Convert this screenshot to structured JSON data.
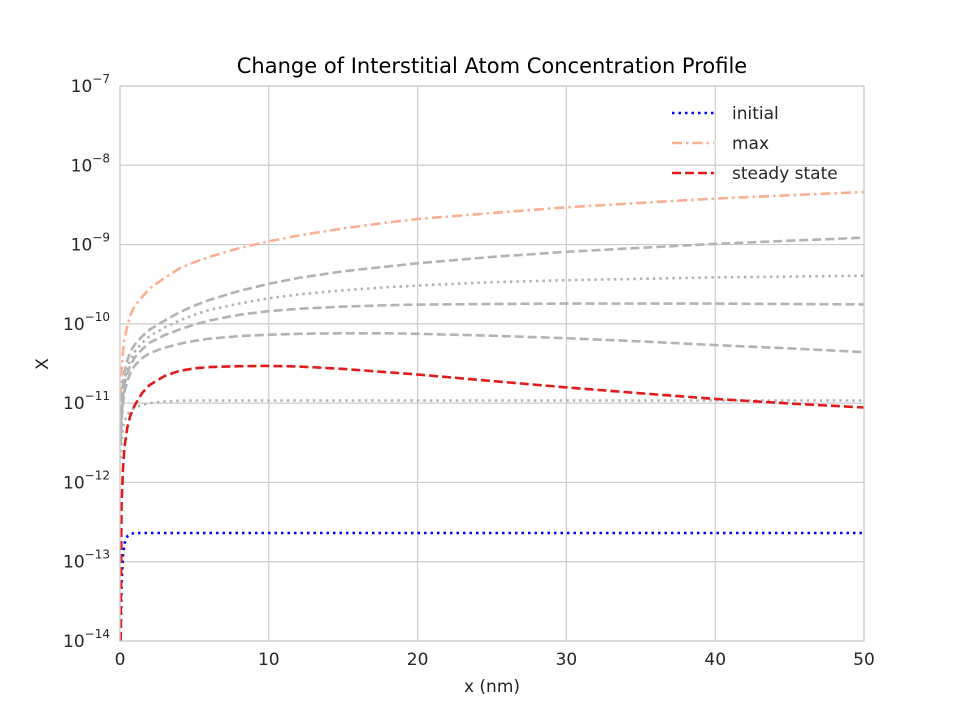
{
  "chart_data": {
    "type": "line",
    "title": "Change of Interstitial Atom Concentration Profile",
    "xlabel": "x (nm)",
    "ylabel": "X",
    "xlim": [
      0,
      50
    ],
    "ylim": [
      1e-14,
      1e-07
    ],
    "yscale": "log",
    "grid": true,
    "legend_position": "top-right",
    "x_ticks": [
      0,
      10,
      20,
      30,
      40,
      50
    ],
    "y_tick_base": "10",
    "y_tick_exponents": [
      "−14",
      "−13",
      "−12",
      "−11",
      "−10",
      "−9",
      "−8",
      "−7"
    ],
    "x": [
      0.05,
      0.1,
      0.2,
      0.3,
      0.5,
      0.7,
      1,
      1.5,
      2,
      3,
      4,
      5,
      6,
      8,
      10,
      12,
      15,
      18,
      20,
      25,
      30,
      35,
      40,
      45,
      50
    ],
    "series": [
      {
        "name": "initial",
        "style": "dotted",
        "color": "#0000ff",
        "values": [
          1e-14,
          5e-14,
          1.2e-13,
          1.7e-13,
          2.1e-13,
          2.25e-13,
          2.3e-13,
          2.3e-13,
          2.3e-13,
          2.3e-13,
          2.3e-13,
          2.3e-13,
          2.3e-13,
          2.3e-13,
          2.3e-13,
          2.3e-13,
          2.3e-13,
          2.3e-13,
          2.3e-13,
          2.3e-13,
          2.3e-13,
          2.3e-13,
          2.3e-13,
          2.3e-13,
          2.3e-13
        ]
      },
      {
        "name": "max",
        "style": "dashdot",
        "color": "#fcae91",
        "values": [
          1.2e-11,
          2.5e-11,
          4.5e-11,
          6.5e-11,
          9.5e-11,
          1.3e-10,
          1.7e-10,
          2.2e-10,
          2.8e-10,
          3.8e-10,
          5e-10,
          6e-10,
          7e-10,
          9e-10,
          1.1e-09,
          1.3e-09,
          1.6e-09,
          1.9e-09,
          2.1e-09,
          2.5e-09,
          2.95e-09,
          3.35e-09,
          3.8e-09,
          4.2e-09,
          4.6e-09
        ]
      },
      {
        "name": "",
        "style": "dashed",
        "color": "#b3b3b3",
        "values": [
          5e-12,
          1e-11,
          1.8e-11,
          2.5e-11,
          3.5e-11,
          4.5e-11,
          5.5e-11,
          7e-11,
          8.5e-11,
          1.1e-10,
          1.4e-10,
          1.7e-10,
          2e-10,
          2.6e-10,
          3.2e-10,
          3.8e-10,
          4.6e-10,
          5.3e-10,
          5.8e-10,
          7e-10,
          8.1e-10,
          9.1e-10,
          1.02e-09,
          1.12e-09,
          1.22e-09
        ]
      },
      {
        "name": "",
        "style": "dotted",
        "color": "#b3b3b3",
        "values": [
          4e-12,
          8e-12,
          1.4e-11,
          2e-11,
          2.8e-11,
          3.5e-11,
          4.5e-11,
          5.8e-11,
          7e-11,
          9e-11,
          1.1e-10,
          1.3e-10,
          1.5e-10,
          1.8e-10,
          2.1e-10,
          2.35e-10,
          2.65e-10,
          2.9e-10,
          3.05e-10,
          3.35e-10,
          3.55e-10,
          3.7e-10,
          3.85e-10,
          3.95e-10,
          4.05e-10
        ]
      },
      {
        "name": "",
        "style": "dashed",
        "color": "#b3b3b3",
        "values": [
          3.5e-12,
          7e-12,
          1.2e-11,
          1.7e-11,
          2.4e-11,
          3e-11,
          3.8e-11,
          4.8e-11,
          5.8e-11,
          7.2e-11,
          8.5e-11,
          9.8e-11,
          1.1e-10,
          1.3e-10,
          1.45e-10,
          1.55e-10,
          1.65e-10,
          1.72e-10,
          1.75e-10,
          1.78e-10,
          1.8e-10,
          1.8e-10,
          1.8e-10,
          1.78e-10,
          1.76e-10
        ]
      },
      {
        "name": "",
        "style": "dashed",
        "color": "#b3b3b3",
        "values": [
          3e-12,
          6e-12,
          1e-11,
          1.4e-11,
          1.9e-11,
          2.4e-11,
          3e-11,
          3.7e-11,
          4.3e-11,
          5e-11,
          5.6e-11,
          6.1e-11,
          6.5e-11,
          7e-11,
          7.3e-11,
          7.5e-11,
          7.6e-11,
          7.6e-11,
          7.5e-11,
          7.1e-11,
          6.6e-11,
          6e-11,
          5.4e-11,
          4.9e-11,
          4.4e-11
        ]
      },
      {
        "name": "",
        "style": "dotted",
        "color": "#b3b3b3",
        "values": [
          2e-12,
          3.5e-12,
          5e-12,
          6e-12,
          7.2e-12,
          8e-12,
          8.8e-12,
          9.5e-12,
          1e-11,
          1.05e-11,
          1.07e-11,
          1.08e-11,
          1.08e-11,
          1.08e-11,
          1.08e-11,
          1.08e-11,
          1.08e-11,
          1.08e-11,
          1.08e-11,
          1.08e-11,
          1.08e-11,
          1.08e-11,
          1.08e-11,
          1.08e-11,
          1.08e-11
        ]
      },
      {
        "name": "steady state",
        "style": "dashed",
        "color": "#e31a1c",
        "values": [
          1e-14,
          5e-13,
          1.5e-12,
          2.8e-12,
          5e-12,
          7e-12,
          9.5e-12,
          1.35e-11,
          1.7e-11,
          2.2e-11,
          2.55e-11,
          2.75e-11,
          2.85e-11,
          2.92e-11,
          2.95e-11,
          2.9e-11,
          2.7e-11,
          2.45e-11,
          2.3e-11,
          1.9e-11,
          1.58e-11,
          1.33e-11,
          1.13e-11,
          9.9e-12,
          8.8e-12
        ]
      }
    ]
  }
}
